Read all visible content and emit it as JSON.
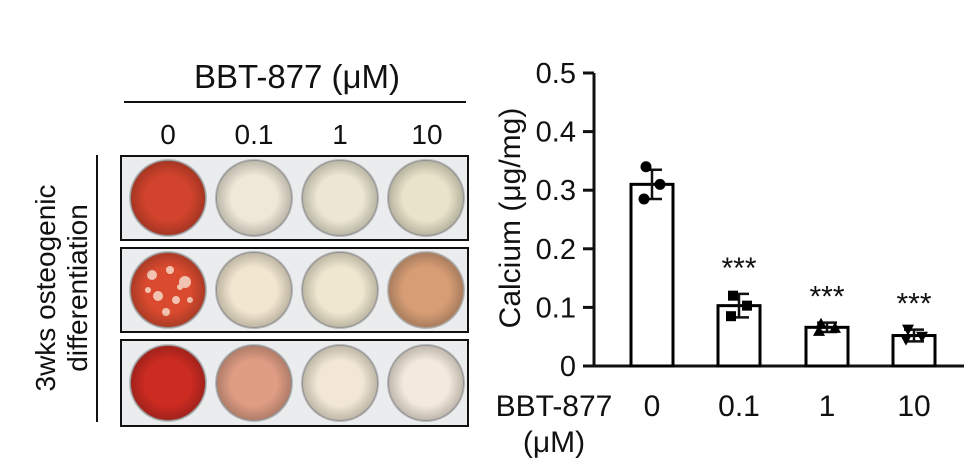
{
  "plate": {
    "header": "BBT-877 (μM)",
    "concentrations": [
      "0",
      "0.1",
      "1",
      "10"
    ],
    "side_label_line1": "3wks osteogenic",
    "side_label_line2": "differentiation",
    "rows": [
      {
        "wells": [
          "#d1432c",
          "#efe8d8",
          "#ece7d2",
          "#e9e3ca"
        ]
      },
      {
        "wells": [
          "#d94a2f",
          "#f1e6cf",
          "#efe7cf",
          "#c56a3a"
        ]
      },
      {
        "wells": [
          "#cc2b22",
          "#df9d84",
          "#f1e7d4",
          "#f3e9dc"
        ]
      }
    ]
  },
  "chart_data": {
    "type": "bar",
    "categories": [
      "0",
      "0.1",
      "1",
      "10"
    ],
    "values": [
      0.31,
      0.103,
      0.066,
      0.052
    ],
    "errors": [
      0.025,
      0.02,
      0.008,
      0.01
    ],
    "points": [
      [
        0.34,
        0.31,
        0.285
      ],
      [
        0.12,
        0.103,
        0.085
      ],
      [
        0.072,
        0.065,
        0.06
      ],
      [
        0.062,
        0.05,
        0.045
      ]
    ],
    "point_markers": [
      "circle",
      "square",
      "triangle",
      "triangle-down"
    ],
    "significance": [
      "",
      "***",
      "***",
      "***"
    ],
    "ylabel": "Calcium (μg/mg)",
    "xlabel_line1": "BBT-877",
    "xlabel_line2": "(μM)",
    "ylim": [
      0,
      0.5
    ],
    "yticks": [
      "0",
      "0.1",
      "0.2",
      "0.3",
      "0.4",
      "0.5"
    ],
    "colors": {
      "bar_fill": "#ffffff",
      "bar_edge": "#000000",
      "points": "#000000"
    }
  }
}
